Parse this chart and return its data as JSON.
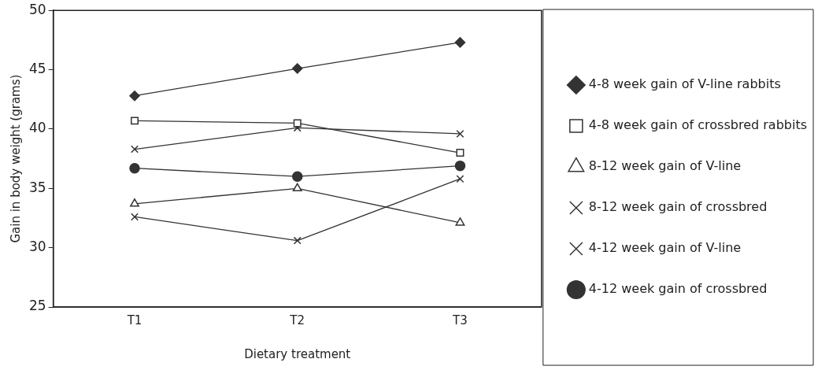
{
  "chart_data": {
    "type": "line",
    "xlabel": "Dietary treatment",
    "ylabel": "Gain in body weight (grams)",
    "categories": [
      "T1",
      "T2",
      "T3"
    ],
    "series": [
      {
        "name": "4-8 week gain of V-line rabbits",
        "color": "#333333",
        "marker": "diamond",
        "values": [
          42.8,
          45.1,
          47.3
        ]
      },
      {
        "name": "4-8 week gain of crossbred rabbits",
        "color": "#333333",
        "marker": "square",
        "values": [
          40.7,
          40.5,
          38.0
        ]
      },
      {
        "name": "8-12 week gain of V-line",
        "color": "#333333",
        "marker": "triangle",
        "values": [
          33.7,
          35.0,
          32.1
        ]
      },
      {
        "name": "8-12 week gain of crossbred",
        "color": "#333333",
        "marker": "cross",
        "values": [
          32.6,
          30.6,
          35.8
        ]
      },
      {
        "name": "4-12 week gain of V-line",
        "color": "#333333",
        "marker": "cross",
        "values": [
          38.3,
          40.1,
          39.6
        ]
      },
      {
        "name": "4-12 week gain of crossbred",
        "color": "#333333",
        "marker": "circle",
        "values": [
          36.7,
          36.0,
          36.9
        ]
      }
    ],
    "ylim": [
      25,
      50
    ],
    "yticks": [
      25,
      30,
      35,
      40,
      45,
      50
    ],
    "grid": false,
    "legend": "right",
    "line_style": "solid"
  }
}
